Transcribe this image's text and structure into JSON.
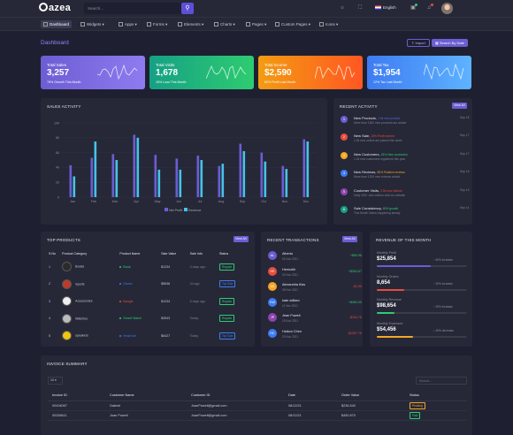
{
  "topbar": {
    "logo": "azea",
    "search_placeholder": "Search...",
    "language": "English"
  },
  "menu": [
    {
      "label": "Dashboard"
    },
    {
      "label": "Widgets"
    },
    {
      "label": "Apps"
    },
    {
      "label": "Forms"
    },
    {
      "label": "Elements"
    },
    {
      "label": "Charts"
    },
    {
      "label": "Pages"
    },
    {
      "label": "Custom Pages"
    },
    {
      "label": "Icons"
    }
  ],
  "page": {
    "title": "Dashboard",
    "import_label": "Import",
    "search_date_label": "Search By Date"
  },
  "stats": [
    {
      "label": "Total Sales",
      "value": "3,257",
      "sub": "76% Growth This Month",
      "color1": "#6c5dd3",
      "color2": "#8e7bf0"
    },
    {
      "label": "Total Visits",
      "value": "1,678",
      "sub": "15% Loss This Month",
      "color1": "#16a085",
      "color2": "#2ecc71"
    },
    {
      "label": "Total Income",
      "value": "$2,590",
      "sub": "62% Profit Last Month",
      "color1": "#f39c12",
      "color2": "#ff5722"
    },
    {
      "label": "Total Tax",
      "value": "$1,954",
      "sub": "12% Tax Last Month",
      "color1": "#3d7bf2",
      "color2": "#5eb3ff"
    }
  ],
  "sales": {
    "title": "SALES ACTIVITY",
    "legend": [
      "Net Profit",
      "Revenue"
    ]
  },
  "chart_data": {
    "type": "bar",
    "categories": [
      "Jan",
      "Feb",
      "Mar",
      "Apr",
      "May",
      "Jun",
      "Jul",
      "Aug",
      "Sep",
      "Oct",
      "Nov",
      "Dec"
    ],
    "series": [
      {
        "name": "Net Profit",
        "values": [
          43,
          53,
          58,
          84,
          57,
          52,
          56,
          42,
          72,
          60,
          42,
          78
        ]
      },
      {
        "name": "Revenue",
        "values": [
          28,
          75,
          50,
          80,
          37,
          37,
          50,
          45,
          62,
          48,
          38,
          75
        ]
      }
    ],
    "ylim": [
      0,
      100
    ],
    "yticks": [
      0,
      20,
      40,
      60,
      80,
      100
    ],
    "colors": [
      "#6c5dd3",
      "#45c3e6"
    ]
  },
  "recent": {
    "title": "RECENT ACTIVITY",
    "view_all": "View All",
    "items": [
      {
        "n": "1",
        "color": "#6c5dd3",
        "title": "New Products,",
        "tag": "1.5k new product",
        "tagcolor": "#4f6de3",
        "desc": "More than 1500 new products are added",
        "ago": "Sep 18"
      },
      {
        "n": "2",
        "color": "#e74c3c",
        "title": "New Sale,",
        "tag": "15% Profit earned",
        "tagcolor": "#e74c3c",
        "desc": "1.5k new orders are placed this week",
        "ago": "Sep 17"
      },
      {
        "n": "3",
        "color": "#f5a623",
        "title": "New Customers,",
        "tag": "18% New customers",
        "tagcolor": "#2ecc71",
        "desc": "1.2k new customers registered this year",
        "ago": "Sep 17"
      },
      {
        "n": "4",
        "color": "#3d7bf2",
        "title": "New Reviews,",
        "tag": "80% Positive reviews",
        "tagcolor": "#f5a623",
        "desc": "More than 1200 new reviews added",
        "ago": "Sep 16"
      },
      {
        "n": "5",
        "color": "#8e44ad",
        "title": "Customer Visits,",
        "tag": "2.5k new visitors",
        "tagcolor": "#e74c3c",
        "desc": "Daily 250+ new visitors visit our website",
        "ago": "Sep 15"
      },
      {
        "n": "6",
        "color": "#16a085",
        "title": "Sale Consistency,",
        "tag": "80% growth",
        "tagcolor": "#2ecc71",
        "desc": "This Month Sales happening steady",
        "ago": "Sep 14"
      }
    ]
  },
  "products": {
    "title": "TOP PRODUCTS",
    "view_all": "View All",
    "headers": [
      "S.No",
      "Product Category",
      "Product Name",
      "Sale Value",
      "Sale Info",
      "Status"
    ],
    "rows": [
      {
        "no": "1",
        "cat": "Books",
        "name": "Book",
        "dot": "#2ecc71",
        "val": "$1234",
        "info": "3 days ago",
        "status": "Regular",
        "sc": "#2ecc71"
      },
      {
        "no": "2",
        "cat": "Sports",
        "name": "Shoes",
        "dot": "#3d7bf2",
        "val": "$5636",
        "info": "2d ago",
        "status": "Top Sale",
        "sc": "#3d7bf2"
      },
      {
        "no": "3",
        "cat": "Accessories",
        "name": "Bangle",
        "dot": "#e74c3c",
        "val": "$1234",
        "info": "5 days ago",
        "status": "Regular",
        "sc": "#2ecc71"
      },
      {
        "no": "4",
        "cat": "Watches",
        "name": "Smart Watch",
        "dot": "#2ecc71",
        "val": "$3543",
        "info": "Today",
        "status": "Regular",
        "sc": "#2ecc71"
      },
      {
        "no": "5",
        "cat": "speakers",
        "name": "Head set",
        "dot": "#3d7bf2",
        "val": "$6427",
        "info": "Today",
        "status": "Top Sale",
        "sc": "#3d7bf2"
      }
    ]
  },
  "transactions": {
    "title": "RECENT TRANSACTIONS",
    "view_all": "View All",
    "items": [
      {
        "init": "AL",
        "color": "#6c5dd3",
        "name": "Alberto",
        "date": "01 Nov 2021",
        "amt": "+$90.96",
        "ac": "#2ecc71"
      },
      {
        "init": "HE",
        "color": "#e74c3c",
        "name": "Hermoilh",
        "date": "03 Nov 2021",
        "amt": "+$354.67",
        "ac": "#2ecc71"
      },
      {
        "init": "AK",
        "color": "#f5a623",
        "name": "Alexandria Kiss",
        "date": "09 Nov 2021",
        "amt": "-$1.00",
        "ac": "#e74c3c"
      },
      {
        "init": "KW",
        "color": "#3d7bf2",
        "name": "kate william",
        "date": "11 Nov 2021",
        "amt": "+$360.00",
        "ac": "#2ecc71"
      },
      {
        "init": "JP",
        "color": "#8e44ad",
        "name": "Jean Powell",
        "date": "15 Nov 2021",
        "amt": "-$154.76",
        "ac": "#e74c3c"
      },
      {
        "init": "HC",
        "color": "#3d7bf2",
        "name": "Haikon Chen",
        "date": "20 Nov 2021",
        "amt": "-$1057.76",
        "ac": "#e74c3c"
      }
    ]
  },
  "revenue": {
    "title": "REVENUE OF THIS MONTH",
    "items": [
      {
        "label": "Monthly Profit",
        "value": "$25,854",
        "pct": "60% increase",
        "fill": 0.6,
        "color": "#6c5dd3"
      },
      {
        "label": "Monthly Orders",
        "value": "8,654",
        "pct": "30% increase",
        "fill": 0.3,
        "color": "#e74c3c"
      },
      {
        "label": "Monthly Revenue",
        "value": "$98,654",
        "pct": "20% increase",
        "fill": 0.2,
        "color": "#2ecc71"
      },
      {
        "label": "Monthly Expenses",
        "value": "$54,456",
        "pct": "40% decrease",
        "fill": 0.4,
        "color": "#f5a623"
      }
    ]
  },
  "invoice": {
    "title": "INVOICE SUMMARY",
    "page_size": "10",
    "search_placeholder": "Search...",
    "headers": [
      "Invoice ID",
      "Customer Name",
      "Customer ID",
      "Date",
      "Order Value",
      "Status"
    ],
    "rows": [
      {
        "id": "00434067",
        "name": "Gabriel",
        "cid": "JoanPowell@gmail.com",
        "date": "08/12/21",
        "value": "$236.540",
        "status": "Pending",
        "sc": "#f5a623"
      },
      {
        "id": "00258411",
        "name": "Joan Powell",
        "cid": "JoanPowell@gmail.com",
        "date": "08/12/21",
        "value": "$450.870",
        "status": "Paid",
        "sc": "#2ecc71"
      }
    ]
  }
}
